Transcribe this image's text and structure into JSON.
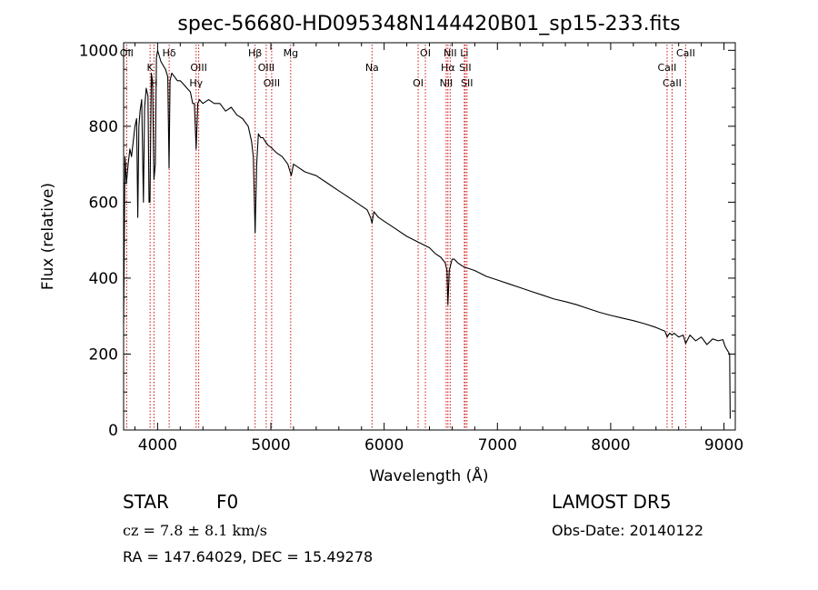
{
  "chart_data": {
    "type": "line",
    "title": "spec-56680-HD095348N144420B01_sp15-233.fits",
    "xlabel": "Wavelength (Å)",
    "ylabel": "Flux (relative)",
    "xlim": [
      3700,
      9100
    ],
    "ylim": [
      0,
      1020
    ],
    "xticks": [
      4000,
      5000,
      6000,
      7000,
      8000,
      9000
    ],
    "yticks": [
      0,
      200,
      400,
      600,
      800,
      1000
    ],
    "grid": false,
    "legend": "none",
    "series": [
      {
        "x": [
          3700,
          3712,
          3725,
          3740,
          3755,
          3770,
          3785,
          3800,
          3815,
          3825,
          3835,
          3845,
          3860,
          3875,
          3885,
          3900,
          3915,
          3925,
          3933,
          3945,
          3955,
          3968,
          3980,
          3990,
          4000,
          4010,
          4030,
          4050,
          4070,
          4090,
          4101,
          4110,
          4125,
          4150,
          4175,
          4200,
          4230,
          4260,
          4290,
          4310,
          4325,
          4340,
          4355,
          4370,
          4400,
          4450,
          4500,
          4550,
          4600,
          4650,
          4700,
          4750,
          4800,
          4830,
          4845,
          4861,
          4875,
          4890,
          4910,
          4930,
          4950,
          4975,
          5000,
          5050,
          5100,
          5150,
          5180,
          5200,
          5250,
          5300,
          5350,
          5400,
          5500,
          5600,
          5700,
          5800,
          5850,
          5880,
          5893,
          5910,
          5950,
          6000,
          6100,
          6200,
          6300,
          6400,
          6450,
          6500,
          6540,
          6555,
          6563,
          6575,
          6600,
          6620,
          6650,
          6700,
          6800,
          6900,
          7000,
          7100,
          7200,
          7300,
          7400,
          7500,
          7600,
          7700,
          7800,
          7900,
          8000,
          8100,
          8200,
          8300,
          8400,
          8480,
          8498,
          8520,
          8542,
          8560,
          8600,
          8640,
          8662,
          8700,
          8750,
          8800,
          8850,
          8900,
          8950,
          8990,
          9010,
          9030,
          9040,
          9050,
          9055
        ],
        "y": [
          280,
          720,
          650,
          700,
          740,
          720,
          760,
          800,
          820,
          560,
          800,
          840,
          870,
          600,
          850,
          900,
          880,
          600,
          600,
          940,
          920,
          660,
          700,
          980,
          1000,
          990,
          970,
          960,
          950,
          930,
          690,
          920,
          940,
          930,
          920,
          920,
          910,
          900,
          890,
          860,
          860,
          740,
          860,
          870,
          860,
          870,
          860,
          860,
          840,
          850,
          830,
          820,
          800,
          760,
          720,
          520,
          700,
          780,
          770,
          770,
          760,
          750,
          745,
          730,
          720,
          700,
          670,
          700,
          690,
          680,
          675,
          670,
          650,
          630,
          610,
          590,
          580,
          560,
          545,
          575,
          560,
          550,
          530,
          510,
          495,
          480,
          465,
          455,
          440,
          420,
          330,
          420,
          450,
          450,
          440,
          430,
          420,
          405,
          395,
          385,
          375,
          365,
          355,
          345,
          338,
          330,
          320,
          310,
          302,
          295,
          288,
          280,
          270,
          260,
          245,
          255,
          250,
          255,
          245,
          250,
          228,
          250,
          235,
          245,
          225,
          240,
          235,
          238,
          220,
          210,
          205,
          200,
          30
        ]
      }
    ],
    "lines": [
      {
        "label": "Hδ",
        "x": 4102
      },
      {
        "label": "K",
        "x": 3934
      },
      {
        "label": "H",
        "x": 3968
      },
      {
        "label": "OII",
        "x": 3727
      },
      {
        "label": "OIII",
        "x": 4363
      },
      {
        "label": "Hγ",
        "x": 4340
      },
      {
        "label": "Hβ",
        "x": 4861
      },
      {
        "label": "OIII",
        "x": 4959
      },
      {
        "label": "OIII",
        "x": 5007
      },
      {
        "label": "Mg",
        "x": 5175
      },
      {
        "label": "Na",
        "x": 5893
      },
      {
        "label": "OI",
        "x": 6300
      },
      {
        "label": "OI",
        "x": 6364
      },
      {
        "label": "Hα",
        "x": 6563
      },
      {
        "label": "NII",
        "x": 6548
      },
      {
        "label": "NII",
        "x": 6583
      },
      {
        "label": "SII",
        "x": 6716
      },
      {
        "label": "SII",
        "x": 6731
      },
      {
        "label": "Li",
        "x": 6708
      },
      {
        "label": "CaII",
        "x": 8498
      },
      {
        "label": "CaII",
        "x": 8542
      },
      {
        "label": "CaII",
        "x": 8662
      }
    ]
  },
  "info": {
    "class_label": "STAR",
    "subclass": "F0",
    "survey": "LAMOST DR5",
    "redshift": "cz = 7.8 ± 8.1 km/s",
    "obs_date": "Obs-Date: 20140122",
    "coords": "RA = 147.64029, DEC =  15.49278"
  }
}
